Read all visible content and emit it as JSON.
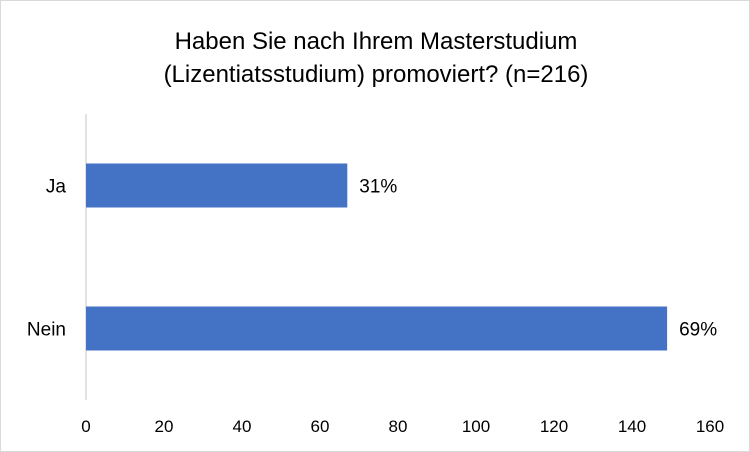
{
  "chart_data": {
    "type": "bar",
    "orientation": "horizontal",
    "title_lines": [
      "Haben Sie nach Ihrem Masterstudium",
      "(Lizentiatsstudium) promoviert? (n=216)"
    ],
    "categories": [
      "Ja",
      "Nein"
    ],
    "values": [
      67,
      149
    ],
    "data_labels": [
      "31%",
      "69%"
    ],
    "xlim": [
      0,
      160
    ],
    "x_ticks": [
      "0",
      "20",
      "40",
      "60",
      "80",
      "100",
      "120",
      "140",
      "160"
    ],
    "grid": false,
    "legend": "none",
    "bar_color": "#4472C4",
    "axis_color": "#d9d9d9"
  }
}
